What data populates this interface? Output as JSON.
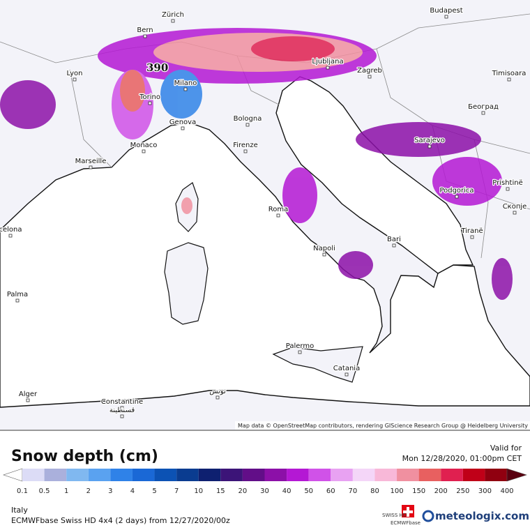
{
  "map": {
    "cities": [
      "Zürich",
      "Bern",
      "Lyon",
      "Milano",
      "Torino",
      "Genova",
      "Bologna",
      "Monaco",
      "Firenze",
      "Marseille",
      "Ljubljana",
      "Zagreb",
      "Budapest",
      "Timisoara",
      "Београд",
      "Sarajevo",
      "Podgorica",
      "Prishtinë",
      "Скопје",
      "Tiranë",
      "Roma",
      "Bari",
      "Napoli",
      "Palermo",
      "Catania",
      "Palma",
      "Alger",
      "Constantine",
      "قسنطينة",
      "تونس",
      "celona"
    ],
    "max_label": "390",
    "attribution": "Map data © OpenStreetMap contributors, rendering GIScience Research Group @ Heidelberg University"
  },
  "footer": {
    "title": "Snow depth (cm)",
    "valid_label": "Valid for",
    "valid_time": "Mon 12/28/2020, 01:00pm CET",
    "region": "Italy",
    "model": "ECMWFbase Swiss HD 4x4 (2 days) from 12/27/2020/00z",
    "badge_swiss": "SWISS HD",
    "badge_ecmwf": "ECMWFbase",
    "brand": "meteologix.com"
  },
  "legend": {
    "labels": [
      0.1,
      0.5,
      1,
      2,
      3,
      4,
      5,
      7,
      10,
      15,
      20,
      30,
      40,
      50,
      60,
      70,
      80,
      100,
      150,
      200,
      250,
      300,
      400
    ],
    "colors": [
      "#dcdcf6",
      "#aab0dc",
      "#80b8f0",
      "#5aa2f0",
      "#2f82e8",
      "#1a68d6",
      "#0c52b4",
      "#0a3c90",
      "#0e2070",
      "#3c1478",
      "#620e88",
      "#8c10a8",
      "#b418d4",
      "#d052e8",
      "#e8a2f2",
      "#f4d6f8",
      "#f8b8d8",
      "#f090a0",
      "#e86060",
      "#e02050",
      "#c00018",
      "#900010"
    ],
    "under_color": "#ffffff",
    "over_color": "#5a0010"
  }
}
